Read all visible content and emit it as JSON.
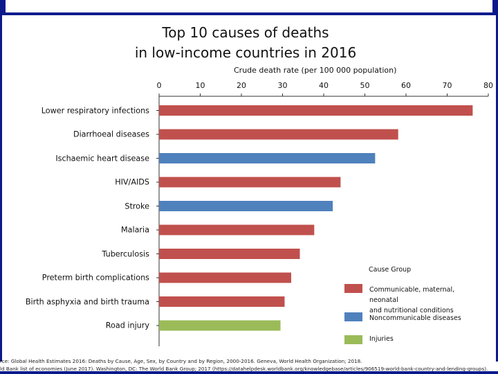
{
  "chart_data": {
    "type": "bar",
    "orientation": "horizontal",
    "title_line1": "Top 10 causes of deaths",
    "title_line2": "in low-income countries in 2016",
    "xlabel": "Crude death rate (per 100 000 population)",
    "xlim": [
      0,
      80
    ],
    "xticks": [
      0,
      10,
      20,
      30,
      40,
      50,
      60,
      70,
      80
    ],
    "categories": [
      "Lower respiratory infections",
      "Diarrhoeal diseases",
      "Ischaemic heart disease",
      "HIV/AIDS",
      "Stroke",
      "Malaria",
      "Tuberculosis",
      "Preterm birth complications",
      "Birth asphyxia and birth trauma",
      "Road injury"
    ],
    "values": [
      76.2,
      58.1,
      52.5,
      44.1,
      42.2,
      37.7,
      34.2,
      32.1,
      30.5,
      29.5
    ],
    "groups": [
      "communicable",
      "communicable",
      "noncommunicable",
      "communicable",
      "noncommunicable",
      "communicable",
      "communicable",
      "communicable",
      "communicable",
      "injuries"
    ],
    "legend": {
      "title": "Cause Group",
      "entries": [
        {
          "key": "communicable",
          "label_line1": "Communicable, maternal, neonatal",
          "label_line2": "and nutritional conditions",
          "color": "#c0504d"
        },
        {
          "key": "noncommunicable",
          "label_line1": "Noncommunicable diseases",
          "label_line2": "",
          "color": "#4f81bd"
        },
        {
          "key": "injuries",
          "label_line1": "Injuries",
          "label_line2": "",
          "color": "#9bbb59"
        }
      ]
    }
  },
  "source": {
    "line1": "rce: Global Health Estimates 2016: Deaths by Cause, Age, Sex, by Country and by Region, 2000-2016. Geneva, World Health Organization; 2018.",
    "line2": "ld Bank list of economies (June 2017). Washington, DC: The World Bank Group; 2017 (https://datahelpdesk.worldbank.org/knowledgebase/articles/906519-world-bank-country-and-lending-groups)."
  },
  "colors": {
    "frame": "#0a1a8c"
  }
}
